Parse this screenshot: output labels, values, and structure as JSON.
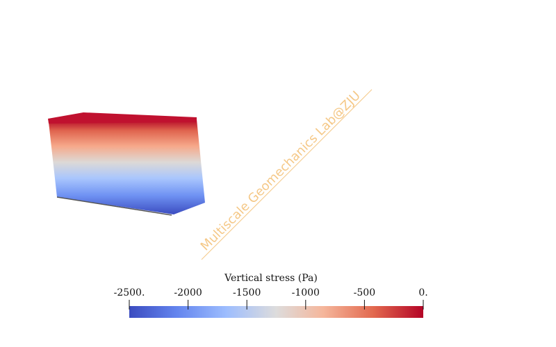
{
  "colorbar": {
    "title": "Vertical stress (Pa)",
    "ticks": [
      {
        "value": -2500,
        "label": "-2500."
      },
      {
        "value": -2000,
        "label": "-2000"
      },
      {
        "value": -1500,
        "label": "-1500"
      },
      {
        "value": -1000,
        "label": "-1000"
      },
      {
        "value": -500,
        "label": "-500"
      },
      {
        "value": 0,
        "label": "0."
      }
    ],
    "range": [
      -2500,
      0
    ],
    "colormap": [
      "#3b4cc0",
      "#7396f5",
      "#b0cbfc",
      "#dcdddd",
      "#f6bfa6",
      "#e8765c",
      "#b40426"
    ]
  },
  "watermark": {
    "text": "Multiscale Geomechanics Lab@ZJU",
    "color": "#f5c887"
  },
  "block": {
    "top_face_color": "#c0112f",
    "edge_color": "#555555"
  }
}
